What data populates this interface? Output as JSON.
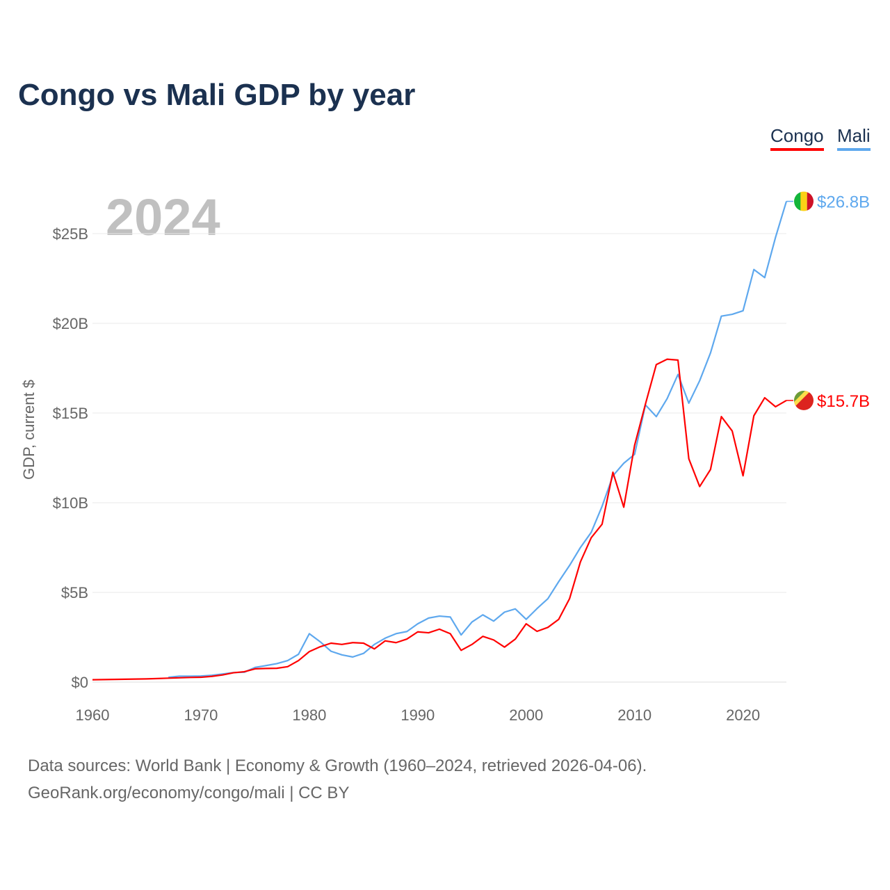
{
  "chart_data": {
    "type": "line",
    "title": "Congo vs Mali GDP by year",
    "ylabel": "GDP, current $",
    "xlabel": "",
    "current_year_label": "2024",
    "xlim": [
      1960,
      2024
    ],
    "ylim": [
      0,
      27
    ],
    "grid": true,
    "legend_position": "top-right",
    "x_ticks": [
      1960,
      1970,
      1980,
      1990,
      2000,
      2010,
      2020
    ],
    "x_tick_labels": [
      "1960",
      "1970",
      "1980",
      "1990",
      "2000",
      "2010",
      "2020"
    ],
    "y_ticks": [
      0,
      5,
      10,
      15,
      20,
      25
    ],
    "y_tick_labels": [
      "$0",
      "$5B",
      "$10B",
      "$15B",
      "$20B",
      "$25B"
    ],
    "series": [
      {
        "name": "Congo",
        "color": "#ff0000",
        "start_year": 1960,
        "end_label": "$15.7B",
        "flag": "congo-flag",
        "values": [
          0.13,
          0.14,
          0.15,
          0.16,
          0.17,
          0.18,
          0.2,
          0.22,
          0.24,
          0.26,
          0.27,
          0.32,
          0.4,
          0.52,
          0.58,
          0.74,
          0.76,
          0.77,
          0.86,
          1.2,
          1.7,
          1.97,
          2.17,
          2.1,
          2.2,
          2.17,
          1.85,
          2.3,
          2.2,
          2.4,
          2.8,
          2.75,
          2.95,
          2.7,
          1.77,
          2.1,
          2.55,
          2.35,
          1.95,
          2.4,
          3.25,
          2.83,
          3.05,
          3.5,
          4.65,
          6.7,
          8.05,
          8.8,
          11.7,
          9.75,
          13.2,
          15.5,
          17.7,
          18.0,
          17.95,
          12.45,
          10.9,
          11.85,
          14.8,
          14.0,
          11.5,
          14.85,
          15.85,
          15.35,
          15.7
        ]
      },
      {
        "name": "Mali",
        "color": "#5ea8ee",
        "start_year": 1967,
        "end_label": "$26.8B",
        "flag": "mali-flag",
        "values": [
          0.27,
          0.33,
          0.33,
          0.34,
          0.38,
          0.45,
          0.53,
          0.55,
          0.82,
          0.92,
          1.03,
          1.2,
          1.55,
          2.7,
          2.25,
          1.72,
          1.52,
          1.4,
          1.6,
          2.1,
          2.45,
          2.7,
          2.82,
          3.25,
          3.57,
          3.68,
          3.63,
          2.63,
          3.35,
          3.75,
          3.4,
          3.9,
          4.08,
          3.5,
          4.1,
          4.65,
          5.6,
          6.5,
          7.5,
          8.35,
          9.8,
          11.5,
          12.2,
          12.7,
          15.45,
          14.8,
          15.8,
          17.15,
          15.55,
          16.8,
          18.35,
          20.4,
          20.5,
          20.7,
          23.0,
          22.55,
          24.8,
          26.8
        ]
      }
    ]
  },
  "footer": {
    "line1": "Data sources: World Bank | Economy & Growth (1960–2024, retrieved 2026-04-06).",
    "line2": "GeoRank.org/economy/congo/mali | CC BY"
  }
}
